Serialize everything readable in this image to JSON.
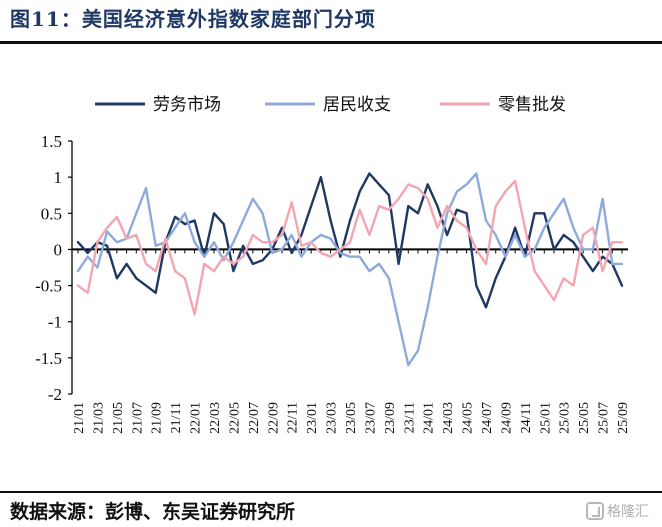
{
  "figure": {
    "title": "图11：美国经济意外指数家庭部门分项",
    "source": "数据来源：彭博、东吴证券研究所",
    "watermark": "格隆汇"
  },
  "chart_data": {
    "type": "line",
    "ylim": [
      -2,
      1.5
    ],
    "yticks": [
      1.5,
      1,
      0.5,
      0,
      -0.5,
      -1,
      -1.5,
      -2
    ],
    "ytick_labels": [
      "1.5",
      "1",
      "0.5",
      "0",
      "-0.5",
      "-1",
      "-1.5",
      "-2"
    ],
    "xlim": [
      "2021-01",
      "2025-09"
    ],
    "x_tick_labels": [
      "21/01",
      "21/03",
      "21/05",
      "21/07",
      "21/09",
      "21/11",
      "22/01",
      "22/03",
      "22/05",
      "22/07",
      "22/09",
      "22/11",
      "23/01",
      "23/03",
      "23/05",
      "23/07",
      "23/09",
      "23/11",
      "24/01",
      "24/03",
      "24/05",
      "24/07",
      "24/09",
      "24/11",
      "25/01",
      "25/03",
      "25/05",
      "25/07",
      "25/09"
    ],
    "legend_position": "top",
    "grid": false,
    "x": [
      "2021-01",
      "2021-02",
      "2021-03",
      "2021-04",
      "2021-05",
      "2021-06",
      "2021-07",
      "2021-08",
      "2021-09",
      "2021-10",
      "2021-11",
      "2021-12",
      "2022-01",
      "2022-02",
      "2022-03",
      "2022-04",
      "2022-05",
      "2022-06",
      "2022-07",
      "2022-08",
      "2022-09",
      "2022-10",
      "2022-11",
      "2022-12",
      "2023-01",
      "2023-02",
      "2023-03",
      "2023-04",
      "2023-05",
      "2023-06",
      "2023-07",
      "2023-08",
      "2023-09",
      "2023-10",
      "2023-11",
      "2023-12",
      "2024-01",
      "2024-02",
      "2024-03",
      "2024-04",
      "2024-05",
      "2024-06",
      "2024-07",
      "2024-08",
      "2024-09",
      "2024-10",
      "2024-11",
      "2024-12",
      "2025-01",
      "2025-02",
      "2025-03",
      "2025-04",
      "2025-05",
      "2025-06",
      "2025-07",
      "2025-08",
      "2025-09"
    ],
    "series": [
      {
        "name": "劳务市场",
        "color": "#1f3864",
        "values": [
          0.1,
          -0.05,
          0.1,
          0.05,
          -0.4,
          -0.2,
          -0.4,
          -0.5,
          -0.6,
          0.1,
          0.45,
          0.35,
          0.4,
          -0.1,
          0.5,
          0.35,
          -0.3,
          0.05,
          -0.2,
          -0.15,
          0.0,
          0.3,
          -0.05,
          0.2,
          0.6,
          1.0,
          0.4,
          -0.1,
          0.4,
          0.8,
          1.05,
          0.9,
          0.75,
          -0.2,
          0.6,
          0.5,
          0.9,
          0.6,
          0.2,
          0.55,
          0.5,
          -0.5,
          -0.8,
          -0.4,
          -0.1,
          0.3,
          -0.1,
          0.5,
          0.5,
          0.0,
          0.2,
          0.1,
          -0.1,
          -0.3,
          -0.1,
          -0.2,
          -0.5
        ]
      },
      {
        "name": "居民收支",
        "color": "#8eaadb",
        "values": [
          -0.3,
          -0.1,
          -0.25,
          0.25,
          0.1,
          0.15,
          0.5,
          0.85,
          0.05,
          0.1,
          0.3,
          0.5,
          0.1,
          -0.1,
          0.1,
          -0.15,
          0.1,
          0.4,
          0.7,
          0.5,
          -0.05,
          0.0,
          0.2,
          -0.1,
          0.1,
          0.2,
          0.15,
          -0.05,
          -0.1,
          -0.1,
          -0.3,
          -0.2,
          -0.4,
          -1.0,
          -1.6,
          -1.4,
          -0.8,
          -0.1,
          0.5,
          0.8,
          0.9,
          1.05,
          0.4,
          0.2,
          -0.1,
          0.2,
          -0.1,
          0.0,
          0.3,
          0.5,
          0.7,
          0.3,
          0.0,
          0.0,
          0.7,
          -0.2,
          -0.2
        ]
      },
      {
        "name": "零售批发",
        "color": "#f4a6b0",
        "values": [
          -0.5,
          -0.6,
          0.1,
          0.3,
          0.45,
          0.15,
          0.2,
          -0.2,
          -0.3,
          0.15,
          -0.3,
          -0.4,
          -0.9,
          -0.2,
          -0.3,
          -0.1,
          -0.2,
          -0.1,
          0.2,
          0.1,
          0.1,
          0.2,
          0.65,
          0.05,
          0.1,
          -0.05,
          -0.1,
          0.0,
          0.1,
          0.55,
          0.2,
          0.6,
          0.55,
          0.7,
          0.9,
          0.85,
          0.7,
          0.3,
          0.6,
          0.4,
          0.3,
          0.0,
          -0.2,
          0.6,
          0.8,
          0.95,
          0.3,
          -0.3,
          -0.5,
          -0.7,
          -0.4,
          -0.5,
          0.2,
          0.3,
          -0.3,
          0.1,
          0.1
        ]
      }
    ]
  }
}
